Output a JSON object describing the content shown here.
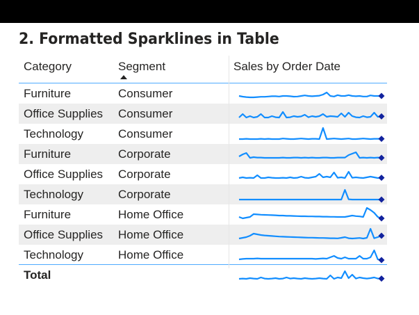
{
  "title": "2. Formatted Sparklines in Table",
  "headers": {
    "category": "Category",
    "segment": "Segment",
    "sales": "Sales by Order Date"
  },
  "sort": {
    "column": "Segment",
    "direction": "ascending"
  },
  "colors": {
    "sparkline": "#118DFF",
    "marker": "#12239E",
    "accent_line": "#118DFF"
  },
  "rows": [
    {
      "category": "Furniture",
      "segment": "Consumer",
      "spark": [
        0.3,
        0.25,
        0.22,
        0.2,
        0.2,
        0.22,
        0.24,
        0.24,
        0.26,
        0.28,
        0.28,
        0.26,
        0.3,
        0.3,
        0.28,
        0.25,
        0.26,
        0.3,
        0.34,
        0.3,
        0.28,
        0.3,
        0.32,
        0.4,
        0.55,
        0.3,
        0.26,
        0.36,
        0.3,
        0.3,
        0.36,
        0.3,
        0.28,
        0.3,
        0.26,
        0.26,
        0.34,
        0.3,
        0.3,
        0.3
      ]
    },
    {
      "category": "Office Supplies",
      "segment": "Consumer",
      "spark": [
        0.2,
        0.45,
        0.2,
        0.3,
        0.2,
        0.25,
        0.45,
        0.2,
        0.2,
        0.3,
        0.22,
        0.2,
        0.6,
        0.2,
        0.22,
        0.3,
        0.25,
        0.28,
        0.4,
        0.22,
        0.3,
        0.25,
        0.3,
        0.45,
        0.25,
        0.3,
        0.28,
        0.25,
        0.5,
        0.25,
        0.55,
        0.3,
        0.22,
        0.2,
        0.3,
        0.22,
        0.25,
        0.55,
        0.25,
        0.28
      ]
    },
    {
      "category": "Technology",
      "segment": "Consumer",
      "spark": [
        0.1,
        0.1,
        0.12,
        0.1,
        0.1,
        0.1,
        0.12,
        0.1,
        0.12,
        0.1,
        0.1,
        0.1,
        0.14,
        0.12,
        0.1,
        0.1,
        0.12,
        0.14,
        0.12,
        0.1,
        0.12,
        0.12,
        0.1,
        0.9,
        0.1,
        0.12,
        0.14,
        0.12,
        0.1,
        0.12,
        0.14,
        0.1,
        0.1,
        0.12,
        0.14,
        0.12,
        0.1,
        0.12,
        0.12,
        0.12
      ]
    },
    {
      "category": "Furniture",
      "segment": "Corporate",
      "spark": [
        0.3,
        0.45,
        0.55,
        0.2,
        0.25,
        0.22,
        0.22,
        0.2,
        0.2,
        0.2,
        0.2,
        0.2,
        0.22,
        0.2,
        0.2,
        0.22,
        0.22,
        0.2,
        0.22,
        0.2,
        0.22,
        0.2,
        0.2,
        0.22,
        0.22,
        0.2,
        0.2,
        0.22,
        0.22,
        0.22,
        0.4,
        0.5,
        0.6,
        0.2,
        0.22,
        0.2,
        0.22,
        0.2,
        0.22,
        0.2
      ]
    },
    {
      "category": "Office Supplies",
      "segment": "Corporate",
      "spark": [
        0.2,
        0.25,
        0.2,
        0.22,
        0.2,
        0.4,
        0.2,
        0.2,
        0.25,
        0.22,
        0.2,
        0.2,
        0.22,
        0.2,
        0.25,
        0.2,
        0.22,
        0.3,
        0.22,
        0.2,
        0.25,
        0.3,
        0.5,
        0.25,
        0.3,
        0.25,
        0.6,
        0.22,
        0.25,
        0.2,
        0.65,
        0.22,
        0.25,
        0.22,
        0.2,
        0.25,
        0.3,
        0.25,
        0.2,
        0.22
      ]
    },
    {
      "category": "Technology",
      "segment": "Corporate",
      "spark": [
        0.1,
        0.1,
        0.1,
        0.1,
        0.1,
        0.1,
        0.1,
        0.1,
        0.1,
        0.1,
        0.1,
        0.1,
        0.1,
        0.1,
        0.1,
        0.1,
        0.1,
        0.1,
        0.1,
        0.1,
        0.1,
        0.1,
        0.1,
        0.1,
        0.1,
        0.1,
        0.1,
        0.1,
        0.1,
        0.8,
        0.12,
        0.1,
        0.1,
        0.1,
        0.1,
        0.1,
        0.1,
        0.1,
        0.1,
        0.1
      ]
    },
    {
      "category": "Furniture",
      "segment": "Home Office",
      "spark": [
        0.3,
        0.2,
        0.25,
        0.3,
        0.5,
        0.48,
        0.46,
        0.45,
        0.44,
        0.43,
        0.42,
        0.4,
        0.4,
        0.38,
        0.38,
        0.37,
        0.36,
        0.35,
        0.35,
        0.34,
        0.34,
        0.33,
        0.33,
        0.32,
        0.32,
        0.31,
        0.31,
        0.3,
        0.3,
        0.3,
        0.35,
        0.4,
        0.36,
        0.34,
        0.3,
        0.95,
        0.8,
        0.6,
        0.3,
        0.2
      ]
    },
    {
      "category": "Office Supplies",
      "segment": "Home Office",
      "spark": [
        0.2,
        0.25,
        0.3,
        0.4,
        0.55,
        0.5,
        0.45,
        0.42,
        0.4,
        0.38,
        0.36,
        0.34,
        0.33,
        0.32,
        0.31,
        0.3,
        0.29,
        0.28,
        0.27,
        0.26,
        0.26,
        0.25,
        0.24,
        0.24,
        0.23,
        0.22,
        0.22,
        0.21,
        0.25,
        0.3,
        0.22,
        0.2,
        0.22,
        0.24,
        0.2,
        0.25,
        0.9,
        0.22,
        0.3,
        0.4
      ]
    },
    {
      "category": "Technology",
      "segment": "Home Office",
      "spark": [
        0.15,
        0.18,
        0.2,
        0.2,
        0.2,
        0.22,
        0.2,
        0.2,
        0.2,
        0.2,
        0.2,
        0.2,
        0.2,
        0.2,
        0.2,
        0.2,
        0.2,
        0.2,
        0.2,
        0.2,
        0.2,
        0.18,
        0.2,
        0.22,
        0.2,
        0.3,
        0.4,
        0.25,
        0.2,
        0.3,
        0.2,
        0.2,
        0.2,
        0.4,
        0.2,
        0.2,
        0.3,
        0.8,
        0.15,
        0.1
      ]
    }
  ],
  "total": {
    "label": "Total",
    "spark": [
      0.2,
      0.22,
      0.2,
      0.25,
      0.22,
      0.2,
      0.3,
      0.22,
      0.2,
      0.22,
      0.25,
      0.2,
      0.22,
      0.3,
      0.22,
      0.25,
      0.22,
      0.2,
      0.25,
      0.22,
      0.2,
      0.22,
      0.25,
      0.22,
      0.2,
      0.45,
      0.2,
      0.3,
      0.25,
      0.75,
      0.25,
      0.5,
      0.22,
      0.3,
      0.25,
      0.22,
      0.25,
      0.3,
      0.22,
      0.22
    ]
  }
}
